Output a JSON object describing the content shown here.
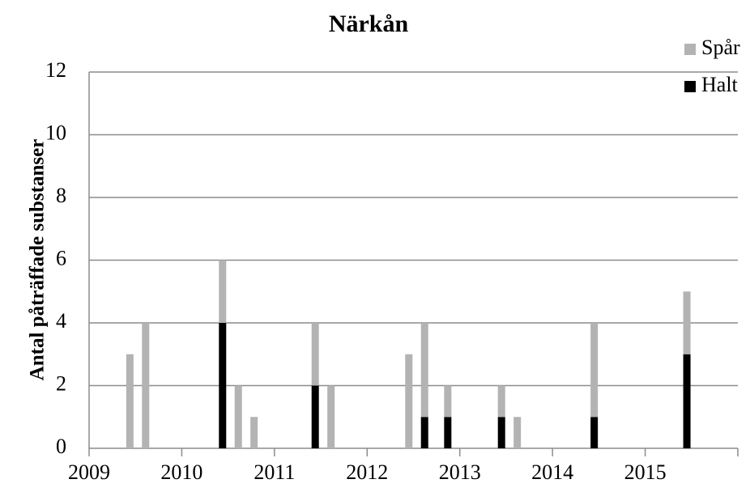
{
  "chart_data": {
    "type": "stacked_bar",
    "title": "Närkån",
    "y_label": "Antal påträffade substanser",
    "x": [
      2009.44,
      2009.61,
      2010.44,
      2010.61,
      2010.78,
      2011.44,
      2011.61,
      2012.45,
      2012.62,
      2012.87,
      2013.45,
      2013.62,
      2014.45,
      2015.45
    ],
    "series": [
      {
        "name": "Halt",
        "color": "#000000",
        "values": [
          0,
          0,
          4,
          0,
          0,
          2,
          0,
          0,
          1,
          1,
          1,
          0,
          1,
          3
        ]
      },
      {
        "name": "Spår",
        "color": "#b3b3b3",
        "values": [
          3,
          4,
          2,
          2,
          1,
          2,
          2,
          3,
          3,
          1,
          1,
          1,
          3,
          2
        ]
      }
    ],
    "xlim": [
      2009,
      2016
    ],
    "xticks": [
      2009,
      2010,
      2011,
      2012,
      2013,
      2014,
      2015
    ],
    "ylim": [
      0,
      12
    ],
    "yticks": [
      0,
      2,
      4,
      6,
      8,
      10,
      12
    ],
    "grid": true,
    "legend": "top-right"
  }
}
